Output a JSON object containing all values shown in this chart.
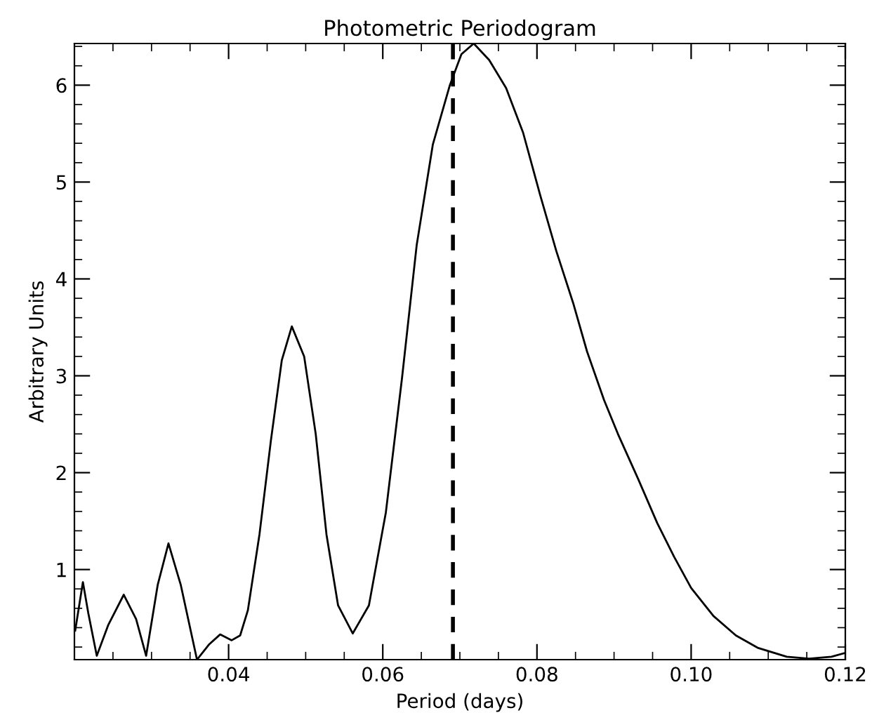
{
  "chart_data": {
    "type": "line",
    "title": "Photometric Periodogram",
    "xlabel": "Period (days)",
    "ylabel": "Arbitrary Units",
    "xlim": [
      0.02,
      0.12
    ],
    "ylim": [
      0.07,
      6.43
    ],
    "xticks": [
      0.04,
      0.06,
      0.08,
      {
        "value": 0.1,
        "label": "0.10"
      },
      0.12
    ],
    "yticks": [
      1,
      2,
      3,
      4,
      5,
      6
    ],
    "grid": false,
    "legend": false,
    "marker": "none",
    "line_style": "solid",
    "ref_lines": [
      {
        "axis": "x",
        "value": 0.0691,
        "color": "#000000",
        "line_style": "dashed"
      }
    ],
    "series": [
      {
        "color": "#000000",
        "x": [
          0.0201,
          0.0211,
          0.0218,
          0.0229,
          0.0244,
          0.0264,
          0.028,
          0.0293,
          0.0308,
          0.0322,
          0.0338,
          0.0359,
          0.0375,
          0.0389,
          0.0404,
          0.0415,
          0.0425,
          0.044,
          0.0455,
          0.0469,
          0.0482,
          0.0498,
          0.0513,
          0.0527,
          0.0542,
          0.0561,
          0.0582,
          0.0604,
          0.0625,
          0.0644,
          0.0665,
          0.0687,
          0.0702,
          0.0718,
          0.0738,
          0.076,
          0.0782,
          0.0804,
          0.0825,
          0.0847,
          0.0865,
          0.0887,
          0.0905,
          0.0931,
          0.0956,
          0.0978,
          0.1,
          0.1029,
          0.1058,
          0.1087,
          0.1124,
          0.1153,
          0.1182,
          0.12
        ],
        "values": [
          0.37,
          0.87,
          0.55,
          0.11,
          0.43,
          0.74,
          0.49,
          0.11,
          0.84,
          1.27,
          0.84,
          0.07,
          0.23,
          0.33,
          0.27,
          0.32,
          0.58,
          1.36,
          2.34,
          3.16,
          3.51,
          3.2,
          2.4,
          1.36,
          0.63,
          0.34,
          0.63,
          1.59,
          2.98,
          4.35,
          5.39,
          6.0,
          6.32,
          6.43,
          6.26,
          5.97,
          5.51,
          4.87,
          4.29,
          3.75,
          3.25,
          2.75,
          2.4,
          1.94,
          1.48,
          1.13,
          0.81,
          0.52,
          0.32,
          0.19,
          0.1,
          0.08,
          0.1,
          0.14
        ]
      }
    ]
  }
}
